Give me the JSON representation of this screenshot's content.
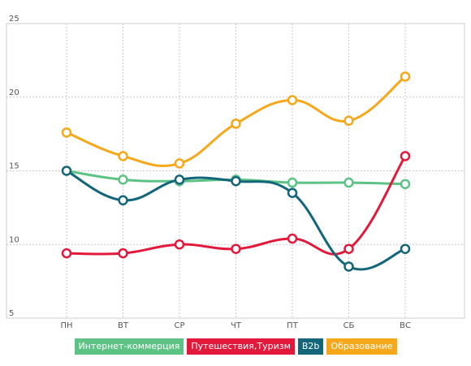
{
  "chart_data": {
    "type": "line",
    "categories": [
      "ПН",
      "ВТ",
      "СР",
      "ЧТ",
      "ПТ",
      "СБ",
      "ВС"
    ],
    "y_ticks": [
      "25",
      "20",
      "15",
      "10",
      "5"
    ],
    "ylim": [
      5,
      25
    ],
    "grid": true,
    "legend_position": "bottom",
    "series": [
      {
        "name": "Интернет-коммерция",
        "color": "#5dc385",
        "values": [
          15.0,
          14.4,
          14.3,
          14.4,
          14.2,
          14.2,
          14.1
        ]
      },
      {
        "name": "Путешествия,Туризм",
        "color": "#e3193b",
        "values": [
          9.4,
          9.4,
          10.0,
          9.7,
          10.4,
          9.7,
          16.0
        ]
      },
      {
        "name": "B2b",
        "color": "#13667a",
        "values": [
          15.0,
          13.0,
          14.4,
          14.3,
          13.5,
          8.5,
          9.7
        ]
      },
      {
        "name": "Образование",
        "color": "#f6a81a",
        "values": [
          17.6,
          16.0,
          15.5,
          18.2,
          19.8,
          18.4,
          21.4
        ]
      }
    ]
  }
}
